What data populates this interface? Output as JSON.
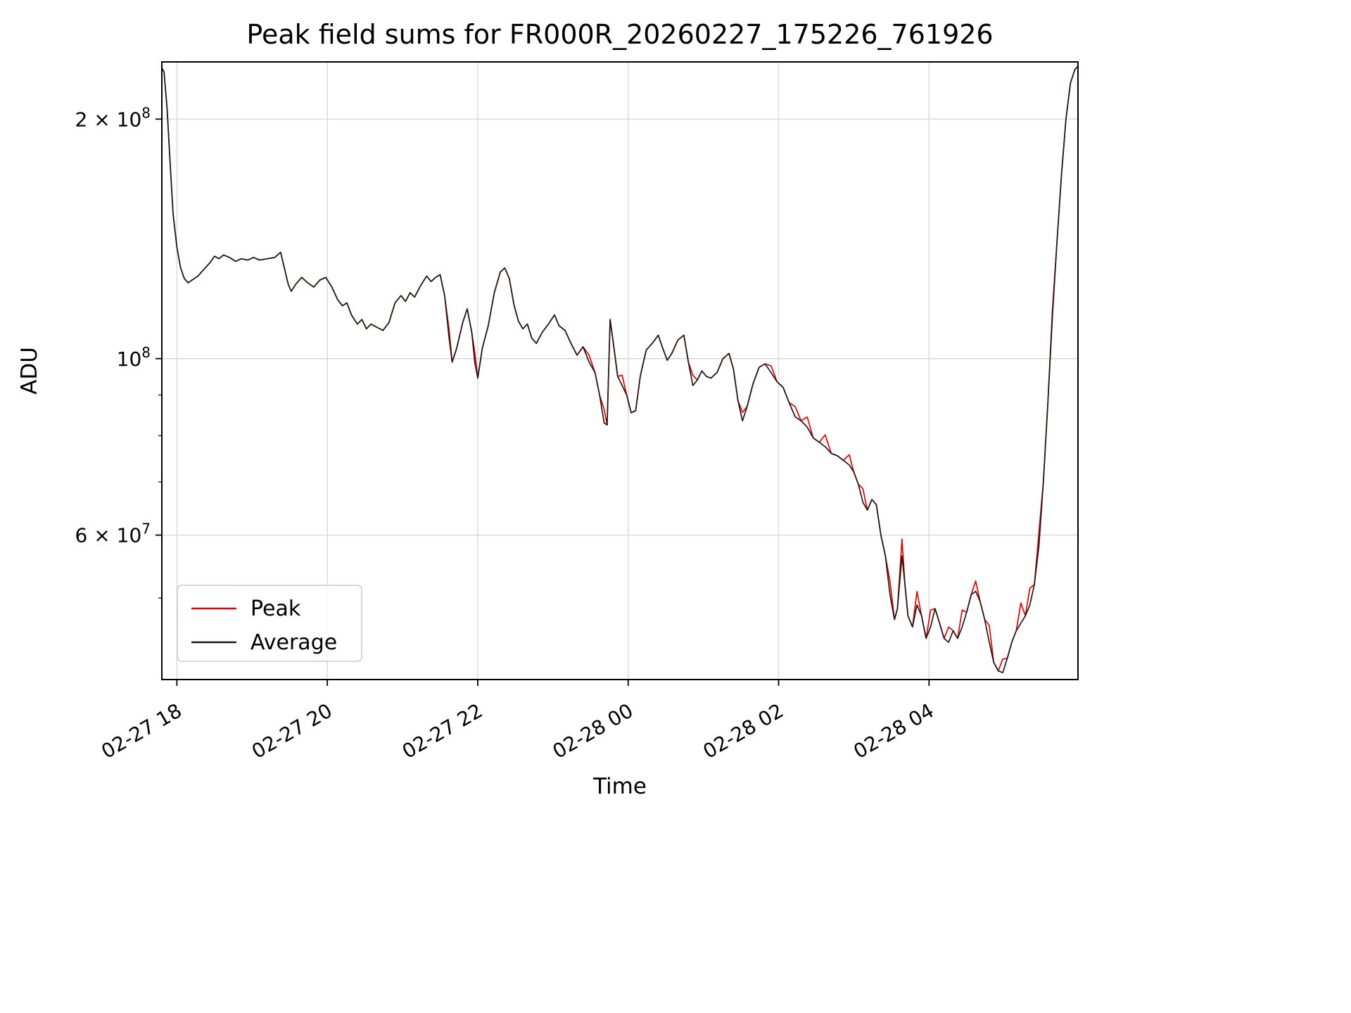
{
  "chart_data": {
    "type": "line",
    "title": "Peak field sums for FR000R_20260227_175226_761926",
    "xlabel": "Time",
    "ylabel": "ADU",
    "yscale": "log",
    "grid": true,
    "x_unit": "hours since 2026-02-27 18:00",
    "xlim": [
      -0.2,
      11.98
    ],
    "ylim": [
      39500000.0,
      236000000.0
    ],
    "value_unit_multiplier": 1000000.0,
    "xticks": [
      {
        "t": 0,
        "label": "02-27 18"
      },
      {
        "t": 2,
        "label": "02-27 20"
      },
      {
        "t": 4,
        "label": "02-27 22"
      },
      {
        "t": 6,
        "label": "02-28 00"
      },
      {
        "t": 8,
        "label": "02-28 02"
      },
      {
        "t": 10,
        "label": "02-28 04"
      }
    ],
    "yticks_major": [
      {
        "value": 200000000.0,
        "base": "2 × 10",
        "exp": "8"
      },
      {
        "value": 100000000.0,
        "base": "10",
        "exp": "8"
      },
      {
        "value": 60000000.0,
        "base": "6 × 10",
        "exp": "7"
      }
    ],
    "yticks_minor": [
      50000000.0,
      70000000.0,
      80000000.0,
      90000000.0
    ],
    "legend": {
      "position": "lower left",
      "entries": [
        {
          "label": "Peak",
          "color": "#dd0000"
        },
        {
          "label": "Average",
          "color": "#1a1a1a"
        }
      ]
    },
    "colors": {
      "peak": "#dd0000",
      "average": "#1a1a1a",
      "grid": "#d9d9d9",
      "spine": "#000000",
      "legend_border": "#cccccc"
    },
    "series": {
      "x_hours": [
        -0.2,
        -0.17,
        -0.13,
        -0.09,
        -0.05,
        0,
        0.05,
        0.1,
        0.15,
        0.2,
        0.28,
        0.36,
        0.44,
        0.5,
        0.56,
        0.62,
        0.7,
        0.78,
        0.86,
        0.94,
        1.02,
        1.1,
        1.2,
        1.3,
        1.38,
        1.42,
        1.48,
        1.52,
        1.58,
        1.66,
        1.74,
        1.82,
        1.9,
        1.98,
        2.06,
        2.14,
        2.2,
        2.26,
        2.32,
        2.4,
        2.46,
        2.52,
        2.58,
        2.66,
        2.74,
        2.82,
        2.9,
        2.98,
        3.04,
        3.1,
        3.16,
        3.24,
        3.32,
        3.38,
        3.44,
        3.5,
        3.56,
        3.62,
        3.66,
        3.72,
        3.8,
        3.86,
        3.92,
        3.96,
        4,
        4.06,
        4.14,
        4.22,
        4.3,
        4.36,
        4.42,
        4.48,
        4.54,
        4.6,
        4.66,
        4.72,
        4.78,
        4.86,
        4.94,
        5.02,
        5.08,
        5.16,
        5.24,
        5.32,
        5.4,
        5.48,
        5.56,
        5.62,
        5.68,
        5.72,
        5.76,
        5.8,
        5.86,
        5.92,
        5.98,
        6.04,
        6.1,
        6.16,
        6.24,
        6.32,
        6.4,
        6.46,
        6.52,
        6.58,
        6.66,
        6.74,
        6.8,
        6.86,
        6.92,
        6.98,
        7.04,
        7.1,
        7.18,
        7.26,
        7.34,
        7.4,
        7.46,
        7.52,
        7.58,
        7.66,
        7.74,
        7.82,
        7.9,
        7.98,
        8.06,
        8.14,
        8.22,
        8.3,
        8.38,
        8.46,
        8.54,
        8.62,
        8.7,
        8.78,
        8.86,
        8.94,
        9,
        9.06,
        9.12,
        9.18,
        9.24,
        9.3,
        9.36,
        9.42,
        9.48,
        9.54,
        9.58,
        9.64,
        9.68,
        9.72,
        9.78,
        9.84,
        9.9,
        9.96,
        10.02,
        10.08,
        10.14,
        10.2,
        10.26,
        10.32,
        10.38,
        10.44,
        10.5,
        10.56,
        10.62,
        10.68,
        10.74,
        10.8,
        10.86,
        10.92,
        10.98,
        11.04,
        11.1,
        11.16,
        11.22,
        11.28,
        11.34,
        11.4,
        11.46,
        11.52,
        11.58,
        11.64,
        11.7,
        11.76,
        11.82,
        11.88,
        11.94,
        11.98
      ],
      "average_millions": [
        232,
        229,
        206,
        176,
        152,
        138,
        130,
        126,
        124.5,
        125.5,
        127,
        129.5,
        132,
        134.5,
        133.5,
        135,
        134,
        132.5,
        133.5,
        133,
        134,
        133,
        133.5,
        134,
        136,
        131,
        124,
        121.5,
        124,
        126.5,
        124.5,
        123,
        125.5,
        126.5,
        123,
        118.5,
        116.5,
        117.5,
        113.5,
        110.5,
        112,
        109,
        110.5,
        109.5,
        108.5,
        111,
        117.5,
        120,
        118,
        121,
        119.5,
        123.5,
        127,
        125,
        126.5,
        127.5,
        120,
        106,
        99,
        103,
        111,
        115.5,
        108,
        99,
        94.5,
        103,
        110,
        121,
        128.5,
        130,
        126,
        117,
        111.5,
        109,
        110.5,
        106,
        104.5,
        108,
        110.5,
        113.5,
        110,
        108.5,
        104.5,
        101,
        103.5,
        99,
        96,
        90,
        83,
        82.5,
        112,
        105,
        95,
        92.5,
        90,
        85.5,
        86,
        95,
        102.5,
        104.5,
        107,
        103,
        99.5,
        101.5,
        105.5,
        107,
        99,
        92.5,
        94,
        96.5,
        95,
        94.5,
        96,
        100,
        101.5,
        97,
        88.5,
        83.5,
        87,
        93,
        97.5,
        98.5,
        96,
        93.5,
        92,
        88,
        84.5,
        83.5,
        82,
        79.5,
        78.5,
        77.5,
        76,
        75.5,
        74.5,
        73.5,
        72,
        69.5,
        66,
        64.5,
        66.5,
        65.5,
        60,
        56.5,
        50.5,
        47,
        48.5,
        56.5,
        52,
        47.5,
        46,
        49,
        47.5,
        44.5,
        46,
        48.5,
        46.5,
        44.5,
        44,
        45.5,
        44.5,
        46,
        48,
        50.5,
        51,
        49.5,
        47,
        44,
        41.5,
        40.5,
        40.3,
        42,
        44,
        45.5,
        46.5,
        47.5,
        49,
        52,
        58,
        70,
        88,
        113,
        140,
        170,
        200,
        222,
        231,
        233
      ],
      "peak_note": "Peak series equals Average except brief upward spikes listed below as [t_hours, multiplier]",
      "peak_spikes": [
        [
          3.62,
          1.025
        ],
        [
          3.96,
          1.03
        ],
        [
          5.48,
          1.02
        ],
        [
          5.68,
          1.04
        ],
        [
          5.92,
          1.03
        ],
        [
          6.86,
          1.03
        ],
        [
          7.52,
          1.025
        ],
        [
          7.9,
          1.02
        ],
        [
          8.22,
          1.03
        ],
        [
          8.38,
          1.03
        ],
        [
          8.62,
          1.035
        ],
        [
          8.94,
          1.03
        ],
        [
          9.12,
          1.04
        ],
        [
          9.48,
          1.04
        ],
        [
          9.64,
          1.05
        ],
        [
          9.84,
          1.04
        ],
        [
          10.02,
          1.05
        ],
        [
          10.26,
          1.045
        ],
        [
          10.44,
          1.05
        ],
        [
          10.62,
          1.03
        ],
        [
          10.8,
          1.05
        ],
        [
          10.98,
          1.04
        ],
        [
          11.22,
          1.06
        ],
        [
          11.34,
          1.05
        ],
        [
          11.46,
          1.04
        ],
        [
          11.64,
          1.02
        ]
      ]
    }
  }
}
